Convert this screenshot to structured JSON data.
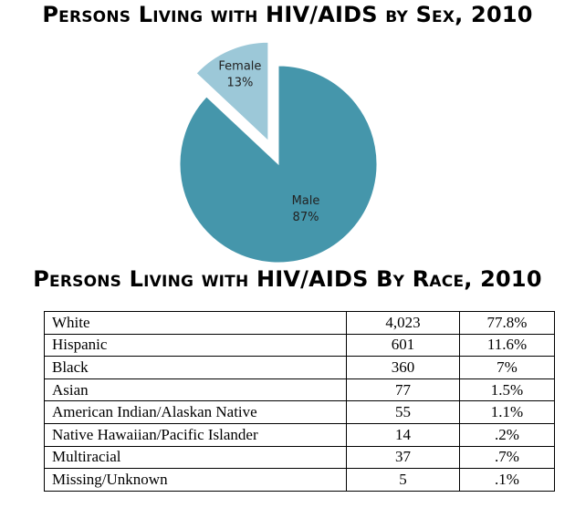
{
  "chart_data": [
    {
      "type": "pie",
      "title": "Persons Living with HIV/AIDS by Sex, 2010",
      "slices": [
        {
          "label": "Male",
          "value": 87,
          "value_label": "87%",
          "color": "#4596ab",
          "exploded": false
        },
        {
          "label": "Female",
          "value": 13,
          "value_label": "13%",
          "color": "#9cc8d8",
          "exploded": true
        }
      ]
    },
    {
      "type": "table",
      "title": "Persons Living with HIV/AIDS By Race, 2010",
      "rows": [
        {
          "race": "White",
          "count": "4,023",
          "percent": "77.8%"
        },
        {
          "race": "Hispanic",
          "count": "601",
          "percent": "11.6%"
        },
        {
          "race": "Black",
          "count": "360",
          "percent": "7%"
        },
        {
          "race": "Asian",
          "count": "77",
          "percent": "1.5%"
        },
        {
          "race": "American Indian/Alaskan Native",
          "count": "55",
          "percent": "1.1%"
        },
        {
          "race": "Native Hawaiian/Pacific Islander",
          "count": "14",
          "percent": ".2%"
        },
        {
          "race": "Multiracial",
          "count": "37",
          "percent": ".7%"
        },
        {
          "race": "Missing/Unknown",
          "count": "5",
          "percent": ".1%"
        }
      ]
    }
  ]
}
